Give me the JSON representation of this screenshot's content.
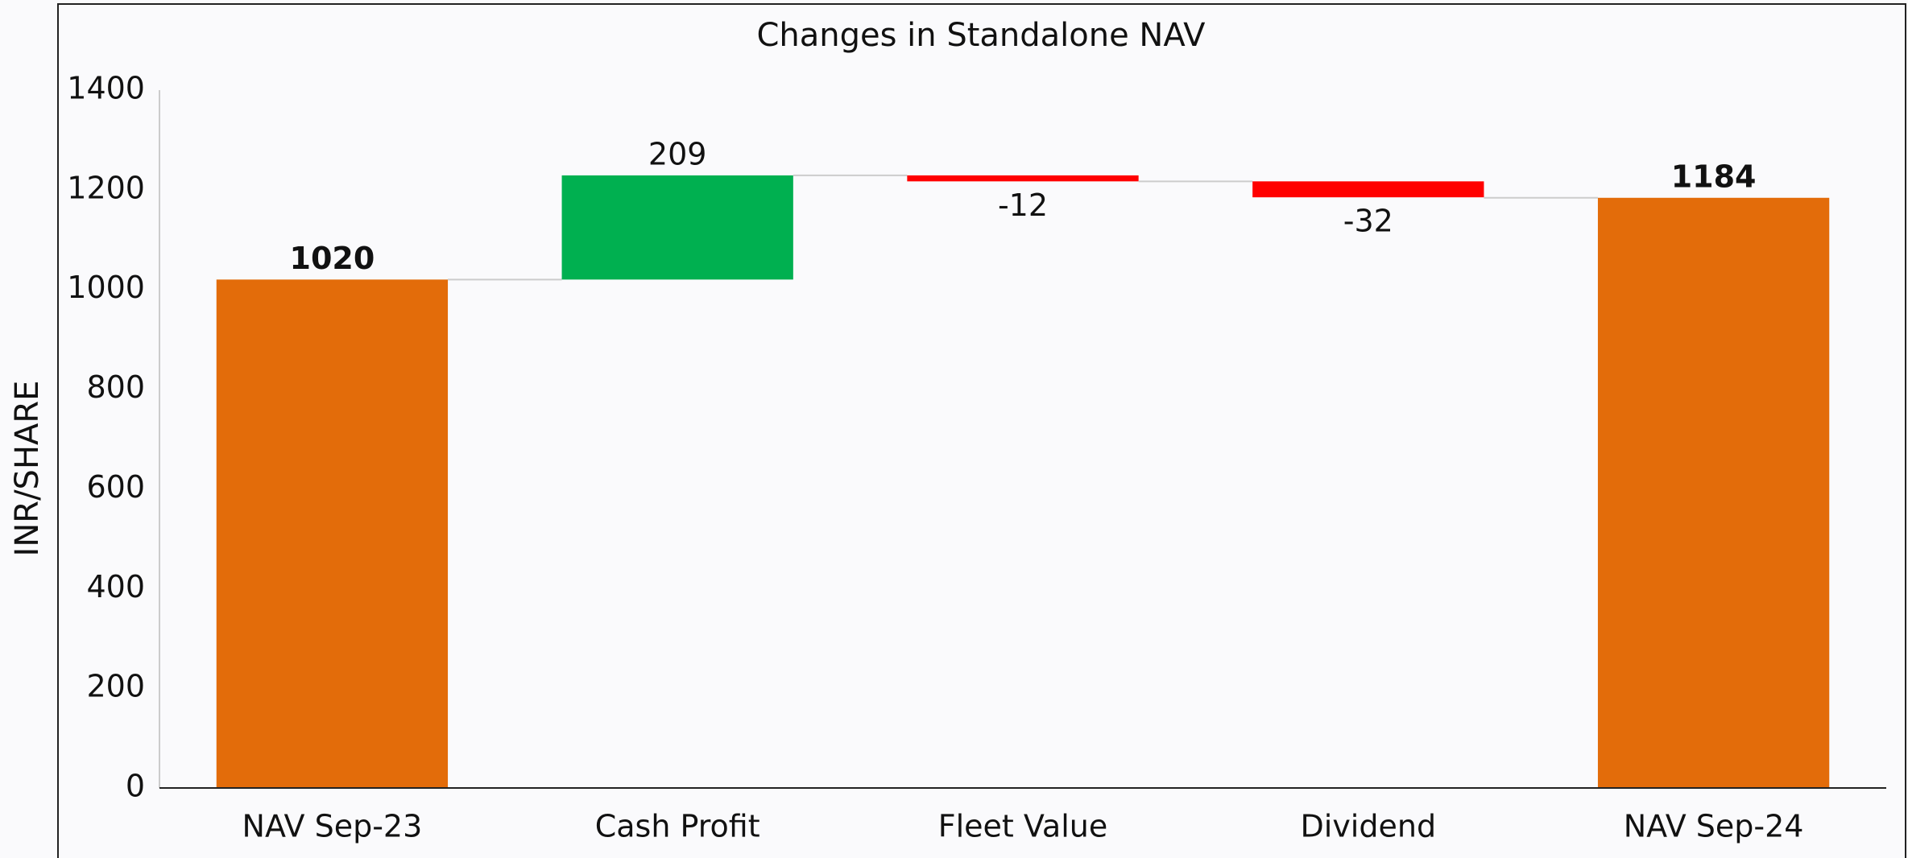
{
  "chart_data": {
    "type": "waterfall",
    "title": "Changes in Standalone NAV",
    "y_label": "INR/SHARE",
    "categories": [
      "NAV Sep-23",
      "Cash Profit",
      "Fleet Value",
      "Dividend",
      "NAV Sep-24"
    ],
    "values": [
      1020,
      209,
      -12,
      -32,
      1184
    ],
    "measures": [
      "total",
      "relative",
      "relative",
      "relative",
      "total"
    ],
    "colors": {
      "total": "#e36c0a",
      "increase": "#00b050",
      "decrease": "#ff0000"
    },
    "ylim": [
      0,
      1400
    ],
    "yticks": [
      0,
      200,
      400,
      600,
      800,
      1000,
      1200,
      1400
    ],
    "grid": false
  }
}
